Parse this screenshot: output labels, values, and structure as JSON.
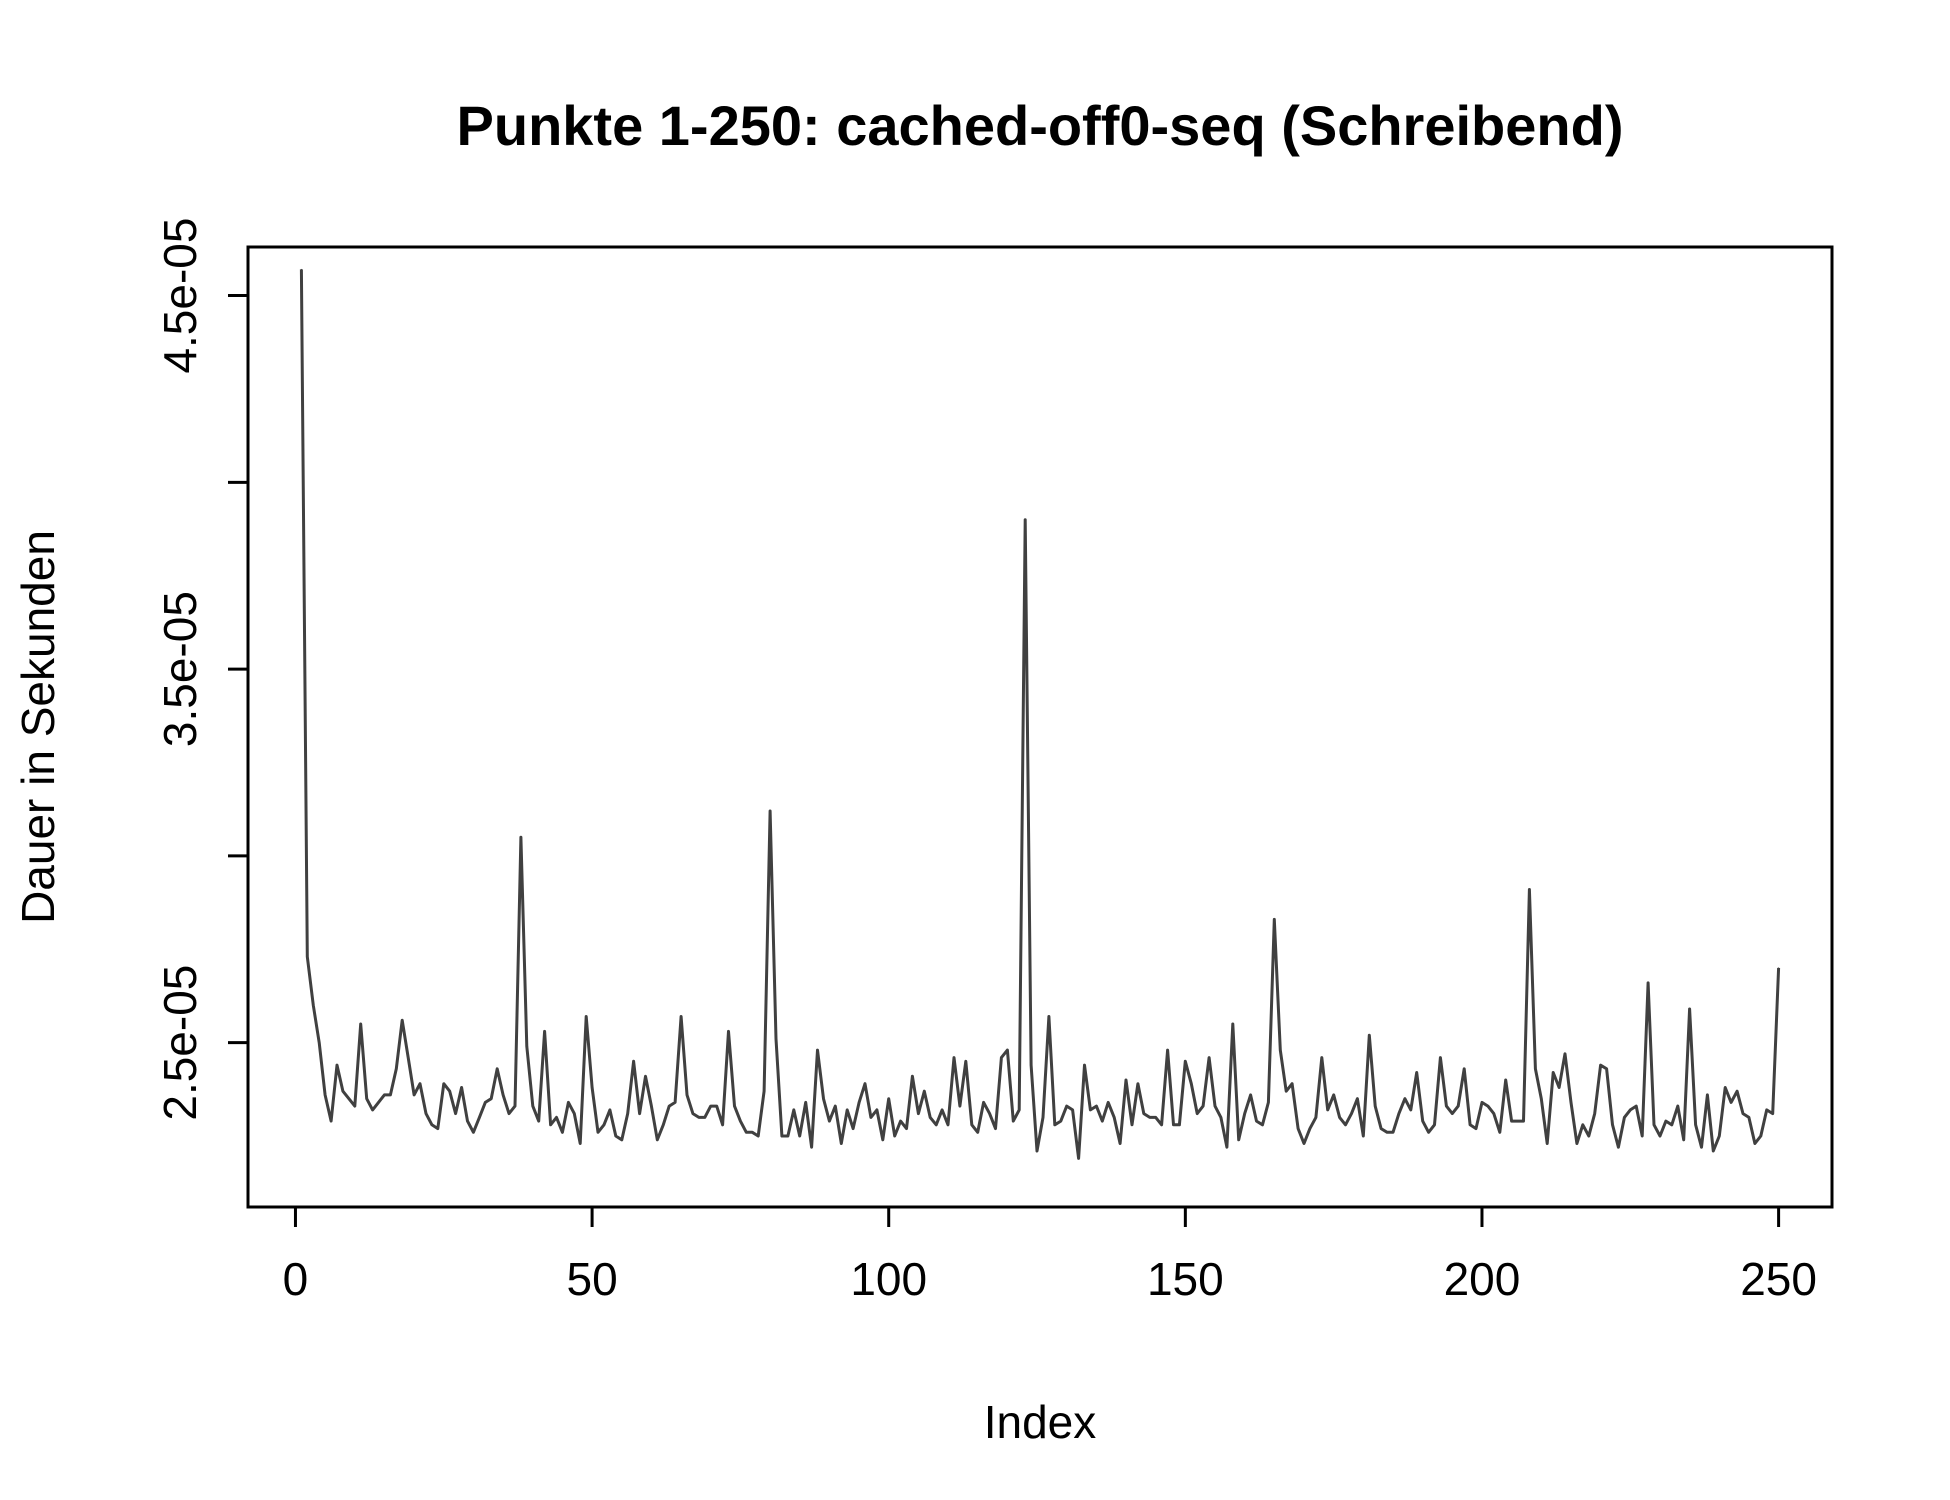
{
  "chart_data": {
    "type": "line",
    "title": "Punkte 1-250: cached-off0-seq (Schreibend)",
    "xlabel": "Index",
    "ylabel": "Dauer in Sekunden",
    "xlim": [
      -8,
      259
    ],
    "ylim": [
      2.06e-05,
      4.63e-05
    ],
    "x_ticks": [
      0,
      50,
      100,
      150,
      200,
      250
    ],
    "y_ticks": [
      2.5e-05,
      3e-05,
      3.5e-05,
      4e-05,
      4.5e-05
    ],
    "y_tick_labels": [
      "2.5e-05",
      "",
      "3.5e-05",
      "",
      "4.5e-05"
    ],
    "grid": false,
    "line_color": "#404040",
    "series": [
      {
        "x_start": 1,
        "x_step": 1,
        "values": [
          4.57e-05,
          2.73e-05,
          2.6e-05,
          2.5e-05,
          2.36e-05,
          2.29e-05,
          2.44e-05,
          2.37e-05,
          2.35e-05,
          2.33e-05,
          2.55e-05,
          2.35e-05,
          2.32e-05,
          2.34e-05,
          2.36e-05,
          2.36e-05,
          2.43e-05,
          2.56e-05,
          2.46e-05,
          2.36e-05,
          2.39e-05,
          2.31e-05,
          2.28e-05,
          2.27e-05,
          2.39e-05,
          2.37e-05,
          2.31e-05,
          2.38e-05,
          2.29e-05,
          2.26e-05,
          2.3e-05,
          2.34e-05,
          2.35e-05,
          2.43e-05,
          2.36e-05,
          2.31e-05,
          2.33e-05,
          3.05e-05,
          2.49e-05,
          2.33e-05,
          2.29e-05,
          2.53e-05,
          2.28e-05,
          2.3e-05,
          2.26e-05,
          2.34e-05,
          2.31e-05,
          2.23e-05,
          2.57e-05,
          2.38e-05,
          2.26e-05,
          2.28e-05,
          2.32e-05,
          2.25e-05,
          2.24e-05,
          2.31e-05,
          2.45e-05,
          2.31e-05,
          2.41e-05,
          2.33e-05,
          2.24e-05,
          2.28e-05,
          2.33e-05,
          2.34e-05,
          2.57e-05,
          2.36e-05,
          2.31e-05,
          2.3e-05,
          2.3e-05,
          2.33e-05,
          2.33e-05,
          2.28e-05,
          2.53e-05,
          2.33e-05,
          2.29e-05,
          2.26e-05,
          2.26e-05,
          2.25e-05,
          2.37e-05,
          3.12e-05,
          2.51e-05,
          2.25e-05,
          2.25e-05,
          2.32e-05,
          2.25e-05,
          2.34e-05,
          2.22e-05,
          2.48e-05,
          2.35e-05,
          2.29e-05,
          2.33e-05,
          2.23e-05,
          2.32e-05,
          2.27e-05,
          2.34e-05,
          2.39e-05,
          2.3e-05,
          2.32e-05,
          2.24e-05,
          2.35e-05,
          2.25e-05,
          2.29e-05,
          2.27e-05,
          2.41e-05,
          2.31e-05,
          2.37e-05,
          2.3e-05,
          2.28e-05,
          2.32e-05,
          2.28e-05,
          2.46e-05,
          2.33e-05,
          2.45e-05,
          2.28e-05,
          2.26e-05,
          2.34e-05,
          2.31e-05,
          2.27e-05,
          2.46e-05,
          2.48e-05,
          2.29e-05,
          2.32e-05,
          3.9e-05,
          2.44e-05,
          2.21e-05,
          2.3e-05,
          2.57e-05,
          2.28e-05,
          2.29e-05,
          2.33e-05,
          2.32e-05,
          2.19e-05,
          2.44e-05,
          2.32e-05,
          2.33e-05,
          2.29e-05,
          2.34e-05,
          2.3e-05,
          2.23e-05,
          2.4e-05,
          2.28e-05,
          2.39e-05,
          2.31e-05,
          2.3e-05,
          2.3e-05,
          2.28e-05,
          2.48e-05,
          2.28e-05,
          2.28e-05,
          2.45e-05,
          2.39e-05,
          2.31e-05,
          2.33e-05,
          2.46e-05,
          2.33e-05,
          2.3e-05,
          2.22e-05,
          2.55e-05,
          2.24e-05,
          2.31e-05,
          2.36e-05,
          2.29e-05,
          2.28e-05,
          2.34e-05,
          2.83e-05,
          2.48e-05,
          2.37e-05,
          2.39e-05,
          2.27e-05,
          2.23e-05,
          2.27e-05,
          2.3e-05,
          2.46e-05,
          2.32e-05,
          2.36e-05,
          2.3e-05,
          2.28e-05,
          2.31e-05,
          2.35e-05,
          2.25e-05,
          2.52e-05,
          2.33e-05,
          2.27e-05,
          2.26e-05,
          2.26e-05,
          2.31e-05,
          2.35e-05,
          2.32e-05,
          2.42e-05,
          2.29e-05,
          2.26e-05,
          2.28e-05,
          2.46e-05,
          2.33e-05,
          2.31e-05,
          2.33e-05,
          2.43e-05,
          2.28e-05,
          2.27e-05,
          2.34e-05,
          2.33e-05,
          2.31e-05,
          2.26e-05,
          2.4e-05,
          2.29e-05,
          2.29e-05,
          2.29e-05,
          2.91e-05,
          2.43e-05,
          2.35e-05,
          2.23e-05,
          2.42e-05,
          2.38e-05,
          2.47e-05,
          2.34e-05,
          2.23e-05,
          2.28e-05,
          2.25e-05,
          2.31e-05,
          2.44e-05,
          2.43e-05,
          2.28e-05,
          2.22e-05,
          2.3e-05,
          2.32e-05,
          2.33e-05,
          2.25e-05,
          2.66e-05,
          2.28e-05,
          2.25e-05,
          2.29e-05,
          2.28e-05,
          2.33e-05,
          2.24e-05,
          2.59e-05,
          2.28e-05,
          2.22e-05,
          2.36e-05,
          2.21e-05,
          2.25e-05,
          2.38e-05,
          2.34e-05,
          2.37e-05,
          2.31e-05,
          2.3e-05,
          2.23e-05,
          2.25e-05,
          2.32e-05,
          2.31e-05,
          2.7e-05
        ]
      }
    ]
  }
}
